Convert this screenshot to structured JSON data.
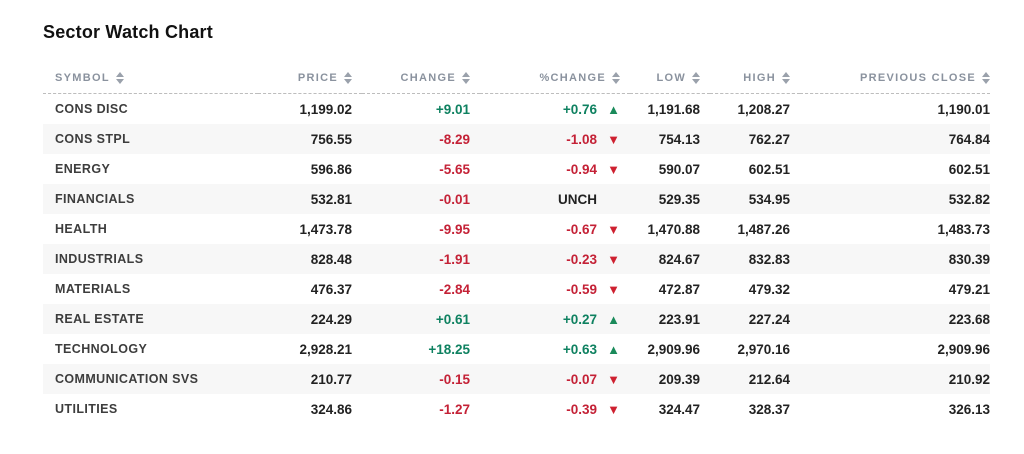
{
  "page": {
    "title": "Sector Watch Chart"
  },
  "colors": {
    "up": "#0e8160",
    "down": "#c42136",
    "unch": "#222222",
    "header_text": "#8a929e",
    "stripe": "#f7f7f7"
  },
  "icons": {
    "up_arrow": "▲",
    "down_arrow": "▼",
    "unch_arrow": "",
    "sort_icon": "up-down-triangles"
  },
  "table": {
    "columns": [
      {
        "label": "SYMBOL"
      },
      {
        "label": "PRICE"
      },
      {
        "label": "CHANGE"
      },
      {
        "label": "%CHANGE"
      },
      {
        "label": "LOW"
      },
      {
        "label": "HIGH"
      },
      {
        "label": "PREVIOUS CLOSE"
      }
    ],
    "rows": [
      {
        "symbol": "CONS DISC",
        "price": "1,199.02",
        "change": "+9.01",
        "change_dir": "up",
        "pct_change": "+0.76",
        "pct_dir": "up",
        "low": "1,191.68",
        "high": "1,208.27",
        "prev_close": "1,190.01"
      },
      {
        "symbol": "CONS STPL",
        "price": "756.55",
        "change": "-8.29",
        "change_dir": "down",
        "pct_change": "-1.08",
        "pct_dir": "down",
        "low": "754.13",
        "high": "762.27",
        "prev_close": "764.84"
      },
      {
        "symbol": "ENERGY",
        "price": "596.86",
        "change": "-5.65",
        "change_dir": "down",
        "pct_change": "-0.94",
        "pct_dir": "down",
        "low": "590.07",
        "high": "602.51",
        "prev_close": "602.51"
      },
      {
        "symbol": "FINANCIALS",
        "price": "532.81",
        "change": "-0.01",
        "change_dir": "down",
        "pct_change": "UNCH",
        "pct_dir": "unch",
        "low": "529.35",
        "high": "534.95",
        "prev_close": "532.82"
      },
      {
        "symbol": "HEALTH",
        "price": "1,473.78",
        "change": "-9.95",
        "change_dir": "down",
        "pct_change": "-0.67",
        "pct_dir": "down",
        "low": "1,470.88",
        "high": "1,487.26",
        "prev_close": "1,483.73"
      },
      {
        "symbol": "INDUSTRIALS",
        "price": "828.48",
        "change": "-1.91",
        "change_dir": "down",
        "pct_change": "-0.23",
        "pct_dir": "down",
        "low": "824.67",
        "high": "832.83",
        "prev_close": "830.39"
      },
      {
        "symbol": "MATERIALS",
        "price": "476.37",
        "change": "-2.84",
        "change_dir": "down",
        "pct_change": "-0.59",
        "pct_dir": "down",
        "low": "472.87",
        "high": "479.32",
        "prev_close": "479.21"
      },
      {
        "symbol": "REAL ESTATE",
        "price": "224.29",
        "change": "+0.61",
        "change_dir": "up",
        "pct_change": "+0.27",
        "pct_dir": "up",
        "low": "223.91",
        "high": "227.24",
        "prev_close": "223.68"
      },
      {
        "symbol": "TECHNOLOGY",
        "price": "2,928.21",
        "change": "+18.25",
        "change_dir": "up",
        "pct_change": "+0.63",
        "pct_dir": "up",
        "low": "2,909.96",
        "high": "2,970.16",
        "prev_close": "2,909.96"
      },
      {
        "symbol": "COMMUNICATION SVS",
        "price": "210.77",
        "change": "-0.15",
        "change_dir": "down",
        "pct_change": "-0.07",
        "pct_dir": "down",
        "low": "209.39",
        "high": "212.64",
        "prev_close": "210.92"
      },
      {
        "symbol": "UTILITIES",
        "price": "324.86",
        "change": "-1.27",
        "change_dir": "down",
        "pct_change": "-0.39",
        "pct_dir": "down",
        "low": "324.47",
        "high": "328.37",
        "prev_close": "326.13"
      }
    ]
  }
}
